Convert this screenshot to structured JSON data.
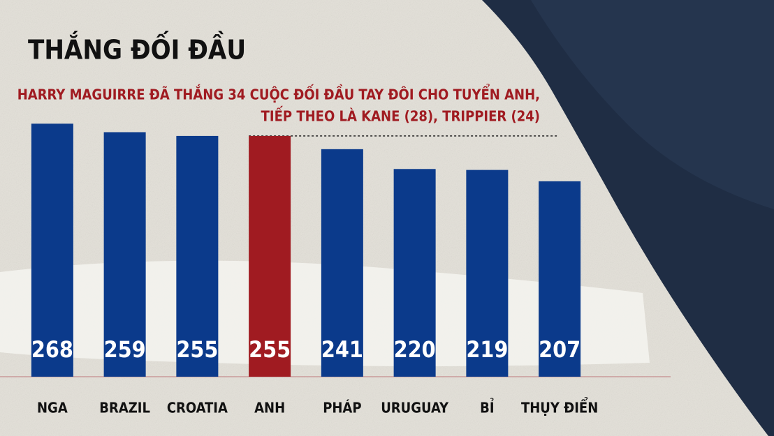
{
  "chart_data": {
    "type": "bar",
    "title": "THẮNG ĐỐI ĐẦU",
    "annotation": [
      "HARRY MAGUIRRE ĐÃ THẮNG 34 CUỘC ĐỐI ĐẦU TAY ĐÔI CHO TUYỂN ANH,",
      "TIẾP THEO LÀ KANE (28), TRIPPIER (24)"
    ],
    "categories": [
      "NGA",
      "BRAZIL",
      "CROATIA",
      "ANH",
      "PHÁP",
      "URUGUAY",
      "BỈ",
      "THỤY ĐIỂN"
    ],
    "values": [
      268,
      259,
      255,
      255,
      241,
      220,
      219,
      207
    ],
    "colors": [
      "#0b3a8b",
      "#0b3a8b",
      "#0b3a8b",
      "#a01b21",
      "#0b3a8b",
      "#0b3a8b",
      "#0b3a8b",
      "#0b3a8b"
    ],
    "ylim": [
      0,
      300
    ]
  }
}
